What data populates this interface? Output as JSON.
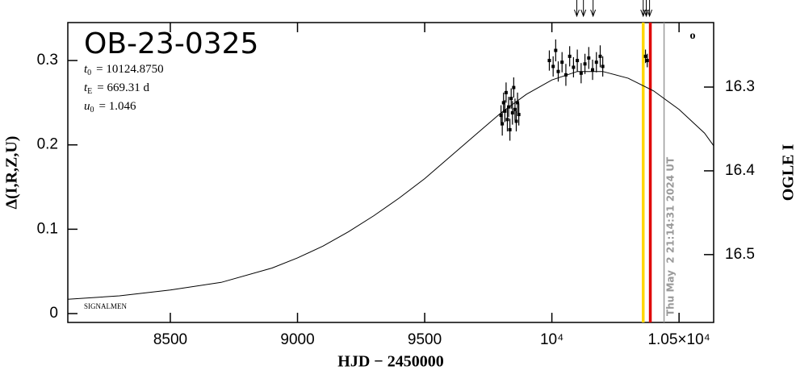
{
  "chart_data": {
    "type": "scatter",
    "title": "OB-23-0325",
    "params": [
      {
        "symbol": "t",
        "subscript": "0",
        "text": "= 10124.8750"
      },
      {
        "symbol": "t",
        "subscript": "E",
        "text": "= 669.31 d"
      },
      {
        "symbol": "u",
        "subscript": "0",
        "text": "= 1.046"
      }
    ],
    "footer_label": "SIGNALMEN",
    "corner_label": "o",
    "x_label": "HJD − 2450000",
    "y_label": "Δ(I,R,Z,U)",
    "y2_label": "OGLE I",
    "xlim": [
      8097,
      10636
    ],
    "ylim": [
      -0.0105,
      0.345
    ],
    "y2lim": [
      16.581,
      16.223
    ],
    "xticks": [
      8500,
      9000,
      9500,
      {
        "value": 10000,
        "label": "10⁴"
      },
      {
        "value": 10500,
        "label": "1.05×10⁴"
      }
    ],
    "yticks": [
      0,
      0.1,
      0.2,
      0.3
    ],
    "y2ticks": [
      16.3,
      16.4,
      16.5
    ],
    "color": "#000000",
    "x": [
      9800,
      9805,
      9810,
      9815,
      9820,
      9825,
      9830,
      9835,
      9840,
      9845,
      9850,
      9855,
      9860,
      9865,
      9870,
      9990,
      10005,
      10015,
      10025,
      10040,
      10055,
      10070,
      10085,
      10100,
      10115,
      10130,
      10145,
      10160,
      10175,
      10190,
      10200,
      10368,
      10375
    ],
    "values": [
      0.235,
      0.225,
      0.25,
      0.24,
      0.262,
      0.23,
      0.245,
      0.218,
      0.255,
      0.238,
      0.268,
      0.242,
      0.228,
      0.25,
      0.236,
      0.3,
      0.293,
      0.312,
      0.287,
      0.298,
      0.283,
      0.305,
      0.292,
      0.3,
      0.285,
      0.296,
      0.303,
      0.289,
      0.298,
      0.305,
      0.293,
      0.305,
      0.3
    ],
    "errors": [
      0.012,
      0.014,
      0.012,
      0.013,
      0.012,
      0.014,
      0.012,
      0.013,
      0.012,
      0.014,
      0.012,
      0.013,
      0.012,
      0.012,
      0.013,
      0.012,
      0.012,
      0.013,
      0.012,
      0.012,
      0.013,
      0.012,
      0.012,
      0.013,
      0.012,
      0.012,
      0.013,
      0.012,
      0.012,
      0.013,
      0.012,
      0.008,
      0.008
    ],
    "model": {
      "x": [
        8097,
        8300,
        8500,
        8700,
        8900,
        9000,
        9100,
        9200,
        9300,
        9400,
        9500,
        9600,
        9700,
        9800,
        9900,
        10000,
        10100,
        10200,
        10300,
        10400,
        10500,
        10600,
        10636
      ],
      "values": [
        0.017,
        0.021,
        0.028,
        0.037,
        0.054,
        0.066,
        0.08,
        0.097,
        0.116,
        0.137,
        0.16,
        0.186,
        0.212,
        0.238,
        0.26,
        0.277,
        0.287,
        0.287,
        0.279,
        0.264,
        0.242,
        0.214,
        0.199
      ],
      "color": "#000000"
    },
    "vlines": [
      {
        "x": 10359,
        "color": "#ffd700"
      },
      {
        "x": 10387,
        "color": "#e00000"
      },
      {
        "x": 10441,
        "color": "#9a9a9a"
      }
    ],
    "timestamp": "Thu May  2 21:14:31 2024 UT",
    "arrows": [
      10098,
      10124,
      10162,
      10359,
      10371,
      10384
    ]
  }
}
